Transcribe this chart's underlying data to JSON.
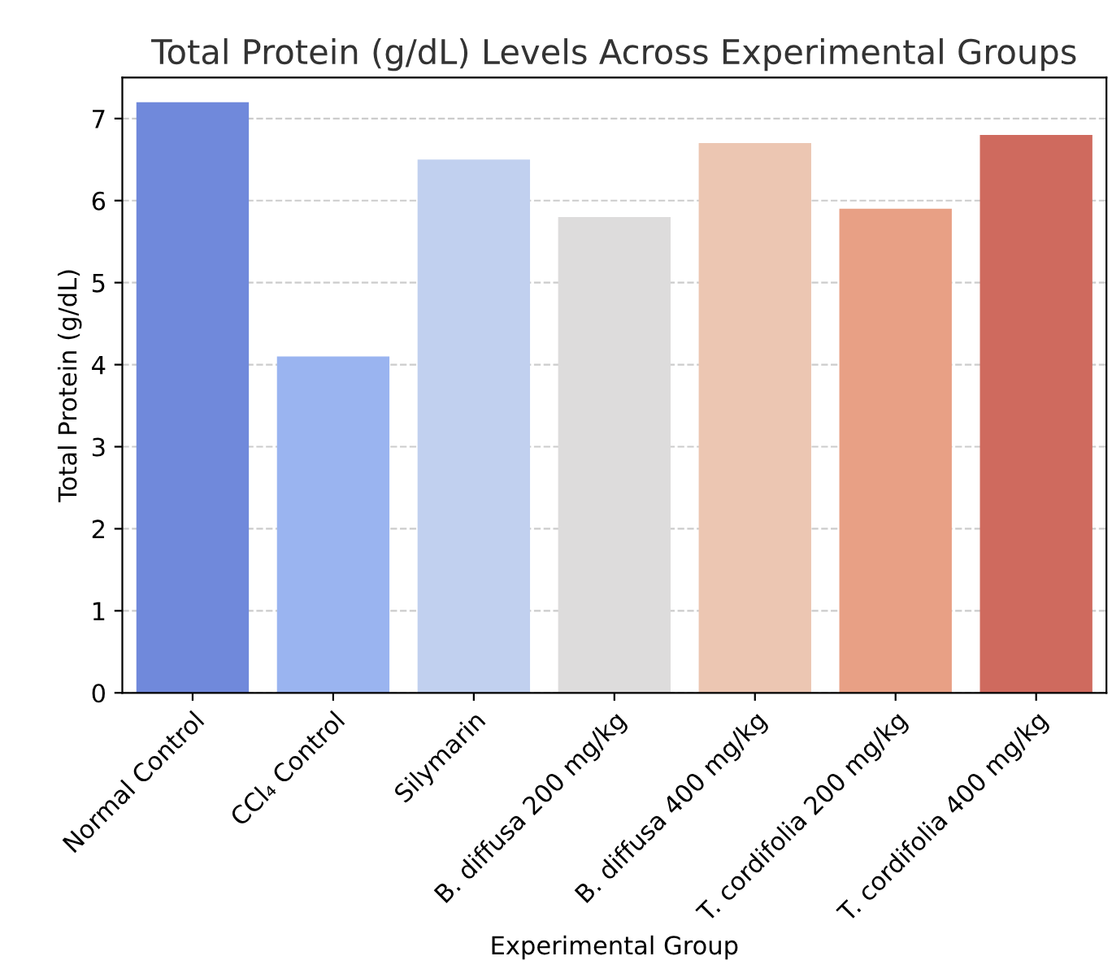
{
  "chart_data": {
    "type": "bar",
    "title": "Total Protein (g/dL) Levels Across Experimental Groups",
    "xlabel": "Experimental Group",
    "ylabel": "Total Protein (g/dL)",
    "categories": [
      "Normal Control",
      "CCl₄ Control",
      "Silymarin",
      "B. diffusa 200 mg/kg",
      "B. diffusa 400 mg/kg",
      "T. cordifolia 200 mg/kg",
      "T. cordifolia 400 mg/kg"
    ],
    "values": [
      7.2,
      4.1,
      6.5,
      5.8,
      6.7,
      5.9,
      6.8
    ],
    "colors": [
      "#7089db",
      "#9ab4f0",
      "#c1d0ef",
      "#dddcdc",
      "#ecc6b2",
      "#e8a085",
      "#cf6a5e"
    ],
    "ylim": [
      0,
      7.5
    ],
    "yticks": [
      0,
      1,
      2,
      3,
      4,
      5,
      6,
      7
    ],
    "grid": "y"
  }
}
